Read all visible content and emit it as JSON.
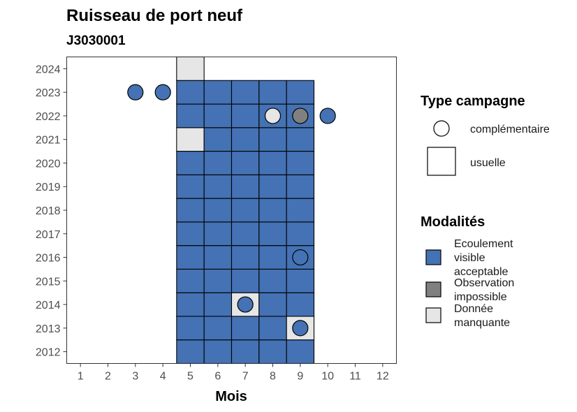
{
  "chart_data": {
    "type": "heatmap",
    "title": "Ruisseau de port neuf",
    "subtitle": "J3030001",
    "xlabel": "Mois",
    "ylabel": "",
    "x_ticks": [
      1,
      2,
      3,
      4,
      5,
      6,
      7,
      8,
      9,
      10,
      11,
      12
    ],
    "y_ticks": [
      2012,
      2013,
      2014,
      2015,
      2016,
      2017,
      2018,
      2019,
      2020,
      2021,
      2022,
      2023,
      2024
    ],
    "xlim": [
      0.5,
      12.5
    ],
    "ylim": [
      2011.5,
      2024.5
    ],
    "grid": false,
    "colors": {
      "Ecoulement visible acceptable": "#4472b4",
      "Observation impossible": "#808080",
      "Donnée manquante": "#e6e6e6"
    },
    "tiles_usuelle": [
      {
        "year": 2012,
        "month": 5,
        "modalite": "Ecoulement visible acceptable"
      },
      {
        "year": 2012,
        "month": 6,
        "modalite": "Ecoulement visible acceptable"
      },
      {
        "year": 2012,
        "month": 7,
        "modalite": "Ecoulement visible acceptable"
      },
      {
        "year": 2012,
        "month": 8,
        "modalite": "Ecoulement visible acceptable"
      },
      {
        "year": 2012,
        "month": 9,
        "modalite": "Ecoulement visible acceptable"
      },
      {
        "year": 2013,
        "month": 5,
        "modalite": "Ecoulement visible acceptable"
      },
      {
        "year": 2013,
        "month": 6,
        "modalite": "Ecoulement visible acceptable"
      },
      {
        "year": 2013,
        "month": 7,
        "modalite": "Ecoulement visible acceptable"
      },
      {
        "year": 2013,
        "month": 8,
        "modalite": "Ecoulement visible acceptable"
      },
      {
        "year": 2013,
        "month": 9,
        "modalite": "Donnée manquante"
      },
      {
        "year": 2014,
        "month": 5,
        "modalite": "Ecoulement visible acceptable"
      },
      {
        "year": 2014,
        "month": 6,
        "modalite": "Ecoulement visible acceptable"
      },
      {
        "year": 2014,
        "month": 7,
        "modalite": "Donnée manquante"
      },
      {
        "year": 2014,
        "month": 8,
        "modalite": "Ecoulement visible acceptable"
      },
      {
        "year": 2014,
        "month": 9,
        "modalite": "Ecoulement visible acceptable"
      },
      {
        "year": 2015,
        "month": 5,
        "modalite": "Ecoulement visible acceptable"
      },
      {
        "year": 2015,
        "month": 6,
        "modalite": "Ecoulement visible acceptable"
      },
      {
        "year": 2015,
        "month": 7,
        "modalite": "Ecoulement visible acceptable"
      },
      {
        "year": 2015,
        "month": 8,
        "modalite": "Ecoulement visible acceptable"
      },
      {
        "year": 2015,
        "month": 9,
        "modalite": "Ecoulement visible acceptable"
      },
      {
        "year": 2016,
        "month": 5,
        "modalite": "Ecoulement visible acceptable"
      },
      {
        "year": 2016,
        "month": 6,
        "modalite": "Ecoulement visible acceptable"
      },
      {
        "year": 2016,
        "month": 7,
        "modalite": "Ecoulement visible acceptable"
      },
      {
        "year": 2016,
        "month": 8,
        "modalite": "Ecoulement visible acceptable"
      },
      {
        "year": 2016,
        "month": 9,
        "modalite": "Ecoulement visible acceptable"
      },
      {
        "year": 2017,
        "month": 5,
        "modalite": "Ecoulement visible acceptable"
      },
      {
        "year": 2017,
        "month": 6,
        "modalite": "Ecoulement visible acceptable"
      },
      {
        "year": 2017,
        "month": 7,
        "modalite": "Ecoulement visible acceptable"
      },
      {
        "year": 2017,
        "month": 8,
        "modalite": "Ecoulement visible acceptable"
      },
      {
        "year": 2017,
        "month": 9,
        "modalite": "Ecoulement visible acceptable"
      },
      {
        "year": 2018,
        "month": 5,
        "modalite": "Ecoulement visible acceptable"
      },
      {
        "year": 2018,
        "month": 6,
        "modalite": "Ecoulement visible acceptable"
      },
      {
        "year": 2018,
        "month": 7,
        "modalite": "Ecoulement visible acceptable"
      },
      {
        "year": 2018,
        "month": 8,
        "modalite": "Ecoulement visible acceptable"
      },
      {
        "year": 2018,
        "month": 9,
        "modalite": "Ecoulement visible acceptable"
      },
      {
        "year": 2019,
        "month": 5,
        "modalite": "Ecoulement visible acceptable"
      },
      {
        "year": 2019,
        "month": 6,
        "modalite": "Ecoulement visible acceptable"
      },
      {
        "year": 2019,
        "month": 7,
        "modalite": "Ecoulement visible acceptable"
      },
      {
        "year": 2019,
        "month": 8,
        "modalite": "Ecoulement visible acceptable"
      },
      {
        "year": 2019,
        "month": 9,
        "modalite": "Ecoulement visible acceptable"
      },
      {
        "year": 2020,
        "month": 5,
        "modalite": "Ecoulement visible acceptable"
      },
      {
        "year": 2020,
        "month": 6,
        "modalite": "Ecoulement visible acceptable"
      },
      {
        "year": 2020,
        "month": 7,
        "modalite": "Ecoulement visible acceptable"
      },
      {
        "year": 2020,
        "month": 8,
        "modalite": "Ecoulement visible acceptable"
      },
      {
        "year": 2020,
        "month": 9,
        "modalite": "Ecoulement visible acceptable"
      },
      {
        "year": 2021,
        "month": 5,
        "modalite": "Donnée manquante"
      },
      {
        "year": 2021,
        "month": 6,
        "modalite": "Ecoulement visible acceptable"
      },
      {
        "year": 2021,
        "month": 7,
        "modalite": "Ecoulement visible acceptable"
      },
      {
        "year": 2021,
        "month": 8,
        "modalite": "Ecoulement visible acceptable"
      },
      {
        "year": 2021,
        "month": 9,
        "modalite": "Ecoulement visible acceptable"
      },
      {
        "year": 2022,
        "month": 5,
        "modalite": "Ecoulement visible acceptable"
      },
      {
        "year": 2022,
        "month": 6,
        "modalite": "Ecoulement visible acceptable"
      },
      {
        "year": 2022,
        "month": 7,
        "modalite": "Ecoulement visible acceptable"
      },
      {
        "year": 2022,
        "month": 8,
        "modalite": "Ecoulement visible acceptable"
      },
      {
        "year": 2022,
        "month": 9,
        "modalite": "Ecoulement visible acceptable"
      },
      {
        "year": 2023,
        "month": 5,
        "modalite": "Ecoulement visible acceptable"
      },
      {
        "year": 2023,
        "month": 6,
        "modalite": "Ecoulement visible acceptable"
      },
      {
        "year": 2023,
        "month": 7,
        "modalite": "Ecoulement visible acceptable"
      },
      {
        "year": 2023,
        "month": 8,
        "modalite": "Ecoulement visible acceptable"
      },
      {
        "year": 2023,
        "month": 9,
        "modalite": "Ecoulement visible acceptable"
      },
      {
        "year": 2024,
        "month": 5,
        "modalite": "Donnée manquante"
      }
    ],
    "points_complementaire": [
      {
        "year": 2023,
        "month": 3,
        "modalite": "Ecoulement visible acceptable"
      },
      {
        "year": 2023,
        "month": 4,
        "modalite": "Ecoulement visible acceptable"
      },
      {
        "year": 2022,
        "month": 8,
        "modalite": "Donnée manquante"
      },
      {
        "year": 2022,
        "month": 9,
        "modalite": "Observation impossible"
      },
      {
        "year": 2022,
        "month": 10,
        "modalite": "Ecoulement visible acceptable"
      },
      {
        "year": 2016,
        "month": 9,
        "modalite": "Ecoulement visible acceptable"
      },
      {
        "year": 2014,
        "month": 7,
        "modalite": "Ecoulement visible acceptable"
      },
      {
        "year": 2013,
        "month": 9,
        "modalite": "Ecoulement visible acceptable"
      }
    ],
    "legend_position": "right",
    "legend_type": {
      "title": "Type campagne",
      "items": [
        "complémentaire",
        "usuelle"
      ]
    },
    "legend_modalites": {
      "title": "Modalités",
      "items": [
        {
          "lines": [
            "Ecoulement",
            "visible",
            "acceptable"
          ],
          "modalite": "Ecoulement visible acceptable"
        },
        {
          "lines": [
            "Observation",
            "impossible"
          ],
          "modalite": "Observation impossible"
        },
        {
          "lines": [
            "Donnée",
            "manquante"
          ],
          "modalite": "Donnée manquante"
        }
      ]
    }
  }
}
